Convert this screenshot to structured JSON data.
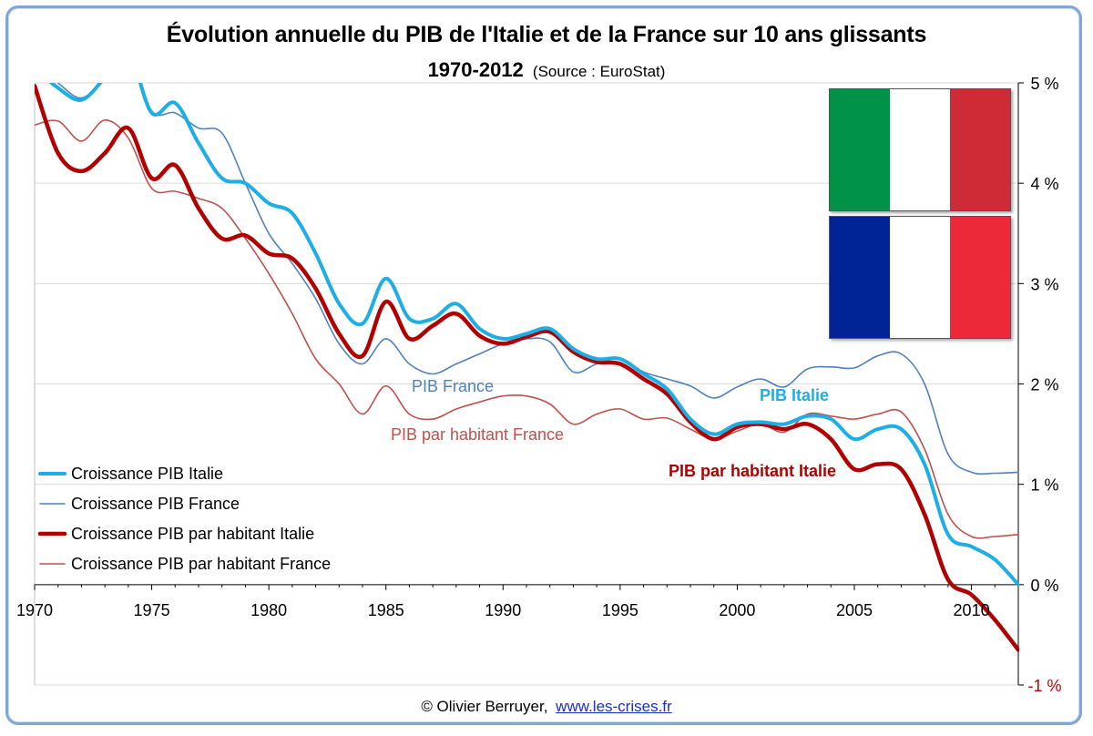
{
  "chart_data": {
    "type": "line",
    "title": "Évolution annuelle du PIB de l'Italie et de la France sur 10 ans glissants",
    "subtitle": "1970-2012",
    "source": "(Source : EuroStat)",
    "credit": "© Olivier Berruyer,",
    "credit_link": "www.les-crises.fr",
    "xlim": [
      1970,
      2012
    ],
    "ylim": [
      -1,
      5
    ],
    "x_ticks": [
      1970,
      1975,
      1980,
      1985,
      1990,
      1995,
      2000,
      2005,
      2010
    ],
    "x_tick_labels": [
      "1970",
      "1975",
      "1980",
      "1985",
      "1990",
      "1995",
      "2000",
      "2005",
      "2010"
    ],
    "y_ticks": [
      -1,
      0,
      1,
      2,
      3,
      4,
      5
    ],
    "y_tick_labels": [
      "-1 %",
      "0 %",
      "1 %",
      "2 %",
      "3 %",
      "4 %",
      "5 %"
    ],
    "grid": "horizontal",
    "legend_position": "bottom-left",
    "annotations": [
      "PIB Italie",
      "PIB France",
      "PIB par habitant Italie",
      "PIB par habitant France"
    ],
    "series": [
      {
        "name": "Croissance PIB Italie",
        "color": "#1eaee6",
        "x": [
          1970,
          1971,
          1972,
          1973,
          1974,
          1975,
          1976,
          1977,
          1978,
          1979,
          1980,
          1981,
          1982,
          1983,
          1984,
          1985,
          1986,
          1987,
          1988,
          1989,
          1990,
          1991,
          1992,
          1993,
          1994,
          1995,
          1996,
          1997,
          1998,
          1999,
          2000,
          2001,
          2002,
          2003,
          2004,
          2005,
          2006,
          2007,
          2008,
          2009,
          2010,
          2011,
          2012
        ],
        "y": [
          5.15,
          4.95,
          4.83,
          5.05,
          5.3,
          4.7,
          4.8,
          4.4,
          4.05,
          4.0,
          3.8,
          3.7,
          3.3,
          2.8,
          2.6,
          3.05,
          2.65,
          2.65,
          2.8,
          2.55,
          2.45,
          2.5,
          2.55,
          2.35,
          2.25,
          2.25,
          2.1,
          1.95,
          1.65,
          1.5,
          1.6,
          1.62,
          1.6,
          1.68,
          1.65,
          1.45,
          1.55,
          1.55,
          1.2,
          0.5,
          0.38,
          0.25,
          0.0
        ]
      },
      {
        "name": "Croissance PIB France",
        "color": "#4f81bd",
        "x": [
          1970,
          1971,
          1972,
          1973,
          1974,
          1975,
          1976,
          1977,
          1978,
          1979,
          1980,
          1981,
          1982,
          1983,
          1984,
          1985,
          1986,
          1987,
          1988,
          1989,
          1990,
          1991,
          1992,
          1993,
          1994,
          1995,
          1996,
          1997,
          1998,
          1999,
          2000,
          2001,
          2002,
          2003,
          2004,
          2005,
          2006,
          2007,
          2008,
          2009,
          2010,
          2011,
          2012
        ],
        "y": [
          5.2,
          5.0,
          4.85,
          5.05,
          5.3,
          4.72,
          4.7,
          4.55,
          4.5,
          4.0,
          3.5,
          3.2,
          2.85,
          2.4,
          2.2,
          2.45,
          2.2,
          2.1,
          2.2,
          2.3,
          2.4,
          2.45,
          2.42,
          2.12,
          2.2,
          2.25,
          2.12,
          2.05,
          1.98,
          1.86,
          1.97,
          2.05,
          1.97,
          2.15,
          2.17,
          2.16,
          2.28,
          2.3,
          2.0,
          1.3,
          1.12,
          1.11,
          1.12
        ]
      },
      {
        "name": "Croissance PIB par habitant Italie",
        "color": "#b00000",
        "x": [
          1970,
          1971,
          1972,
          1973,
          1974,
          1975,
          1976,
          1977,
          1978,
          1979,
          1980,
          1981,
          1982,
          1983,
          1984,
          1985,
          1986,
          1987,
          1988,
          1989,
          1990,
          1991,
          1992,
          1993,
          1994,
          1995,
          1996,
          1997,
          1998,
          1999,
          2000,
          2001,
          2002,
          2003,
          2004,
          2005,
          2006,
          2007,
          2008,
          2009,
          2010,
          2011,
          2012
        ],
        "y": [
          4.97,
          4.3,
          4.12,
          4.3,
          4.55,
          4.05,
          4.18,
          3.75,
          3.45,
          3.48,
          3.3,
          3.25,
          2.95,
          2.5,
          2.28,
          2.82,
          2.45,
          2.58,
          2.7,
          2.48,
          2.4,
          2.47,
          2.52,
          2.32,
          2.22,
          2.2,
          2.05,
          1.9,
          1.62,
          1.45,
          1.57,
          1.6,
          1.55,
          1.6,
          1.45,
          1.15,
          1.2,
          1.15,
          0.7,
          0.05,
          -0.1,
          -0.35,
          -0.65
        ]
      },
      {
        "name": "Croissance PIB par habitant France",
        "color": "#c0504d",
        "x": [
          1970,
          1971,
          1972,
          1973,
          1974,
          1975,
          1976,
          1977,
          1978,
          1979,
          1980,
          1981,
          1982,
          1983,
          1984,
          1985,
          1986,
          1987,
          1988,
          1989,
          1990,
          1991,
          1992,
          1993,
          1994,
          1995,
          1996,
          1997,
          1998,
          1999,
          2000,
          2001,
          2002,
          2003,
          2004,
          2005,
          2006,
          2007,
          2008,
          2009,
          2010,
          2011,
          2012
        ],
        "y": [
          4.58,
          4.62,
          4.42,
          4.63,
          4.45,
          3.95,
          3.92,
          3.85,
          3.75,
          3.45,
          3.1,
          2.7,
          2.25,
          2.0,
          1.7,
          1.98,
          1.7,
          1.65,
          1.75,
          1.82,
          1.88,
          1.88,
          1.8,
          1.6,
          1.7,
          1.75,
          1.65,
          1.66,
          1.55,
          1.45,
          1.53,
          1.6,
          1.52,
          1.7,
          1.68,
          1.65,
          1.7,
          1.72,
          1.35,
          0.7,
          0.48,
          0.48,
          0.5
        ]
      }
    ]
  }
}
